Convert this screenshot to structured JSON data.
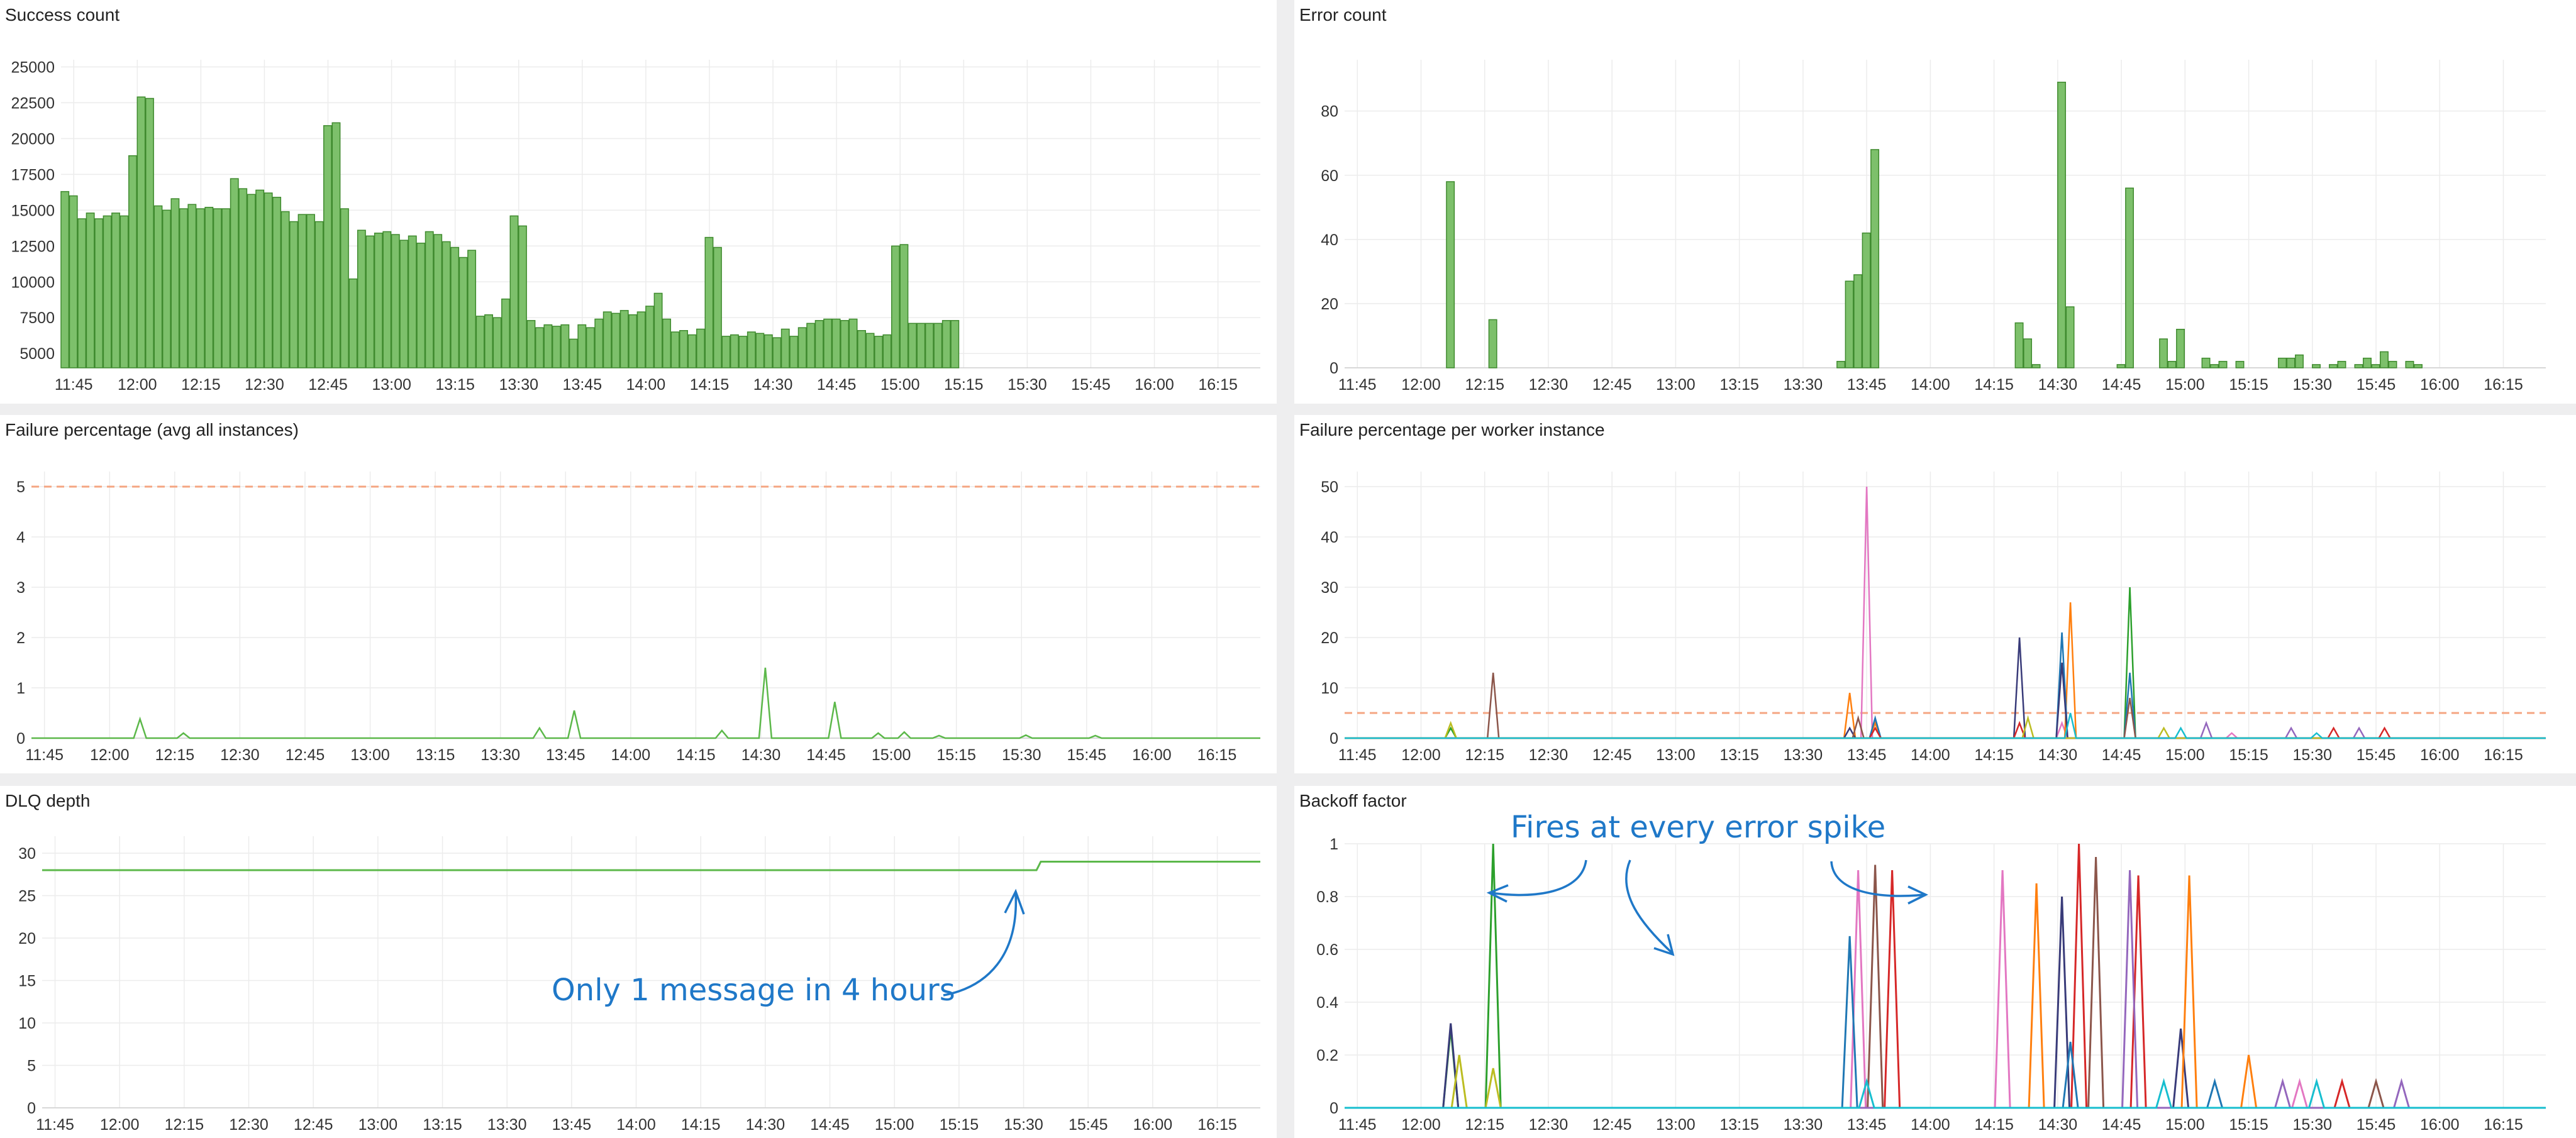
{
  "colors": {
    "bar_fill": "#7dc06b",
    "bar_stroke": "#3f8a2e",
    "line_green": "#5cb84a",
    "threshold": "#f4a582",
    "annotation": "#1f78c8",
    "grid": "#ececec"
  },
  "time_ticks": [
    "11:45",
    "12:00",
    "12:15",
    "12:30",
    "12:45",
    "13:00",
    "13:15",
    "13:30",
    "13:45",
    "14:00",
    "14:15",
    "14:30",
    "14:45",
    "15:00",
    "15:15",
    "15:30",
    "15:45",
    "16:00",
    "16:15"
  ],
  "panels": [
    {
      "id": "success",
      "title": "Success count"
    },
    {
      "id": "error",
      "title": "Error count"
    },
    {
      "id": "failavg",
      "title": "Failure percentage (avg all instances)"
    },
    {
      "id": "failworker",
      "title": "Failure percentage per worker instance"
    },
    {
      "id": "dlq",
      "title": "DLQ depth"
    },
    {
      "id": "backoff",
      "title": "Backoff factor"
    }
  ],
  "annotations": {
    "dlq_note": "Only 1 message in 4 hours",
    "backoff_note": "Fires at every error spike"
  },
  "chart_data": [
    {
      "id": "success",
      "type": "bar",
      "title": "Success count",
      "x_start": "11:42",
      "x_step_minutes": 2,
      "ylim": [
        4000,
        25500
      ],
      "yticks": [
        5000,
        7500,
        10000,
        12500,
        15000,
        17500,
        20000,
        22500,
        25000
      ],
      "values": [
        16300,
        16000,
        14400,
        14800,
        14400,
        14600,
        14800,
        14600,
        18800,
        22900,
        22800,
        15300,
        15000,
        15800,
        15100,
        15400,
        15100,
        15200,
        15100,
        15100,
        17200,
        16500,
        16100,
        16400,
        16200,
        15900,
        14900,
        14200,
        14700,
        14700,
        14200,
        20900,
        21100,
        15100,
        10200,
        13600,
        13200,
        13400,
        13500,
        13300,
        12900,
        13200,
        12700,
        13500,
        13300,
        12800,
        12400,
        11700,
        12200,
        7600,
        7700,
        7500,
        8800,
        14600,
        13900,
        7300,
        6800,
        7000,
        6900,
        7000,
        6000,
        7000,
        6800,
        7400,
        7900,
        7800,
        8000,
        7700,
        7900,
        8300,
        9200,
        7400,
        6500,
        6600,
        6300,
        6700,
        13100,
        12400,
        6200,
        6300,
        6200,
        6500,
        6400,
        6300,
        6100,
        6700,
        6200,
        6800,
        7100,
        7300,
        7400,
        7400,
        7300,
        7400,
        6600,
        6400,
        6200,
        6300,
        12500,
        12600,
        7100,
        7100,
        7100,
        7100,
        7300,
        7300
      ]
    },
    {
      "id": "error",
      "type": "bar",
      "title": "Error count",
      "x_start": "11:42",
      "x_step_minutes": 2,
      "ylim": [
        0,
        96
      ],
      "yticks": [
        0,
        20,
        40,
        60,
        80
      ],
      "spikes": [
        [
          12,
          58
        ],
        [
          17,
          15
        ],
        [
          58,
          2
        ],
        [
          59,
          27
        ],
        [
          60,
          29
        ],
        [
          61,
          42
        ],
        [
          62,
          68
        ],
        [
          79,
          14
        ],
        [
          80,
          9
        ],
        [
          81,
          1
        ],
        [
          84,
          89
        ],
        [
          85,
          19
        ],
        [
          91,
          1
        ],
        [
          92,
          56
        ],
        [
          96,
          9
        ],
        [
          97,
          2
        ],
        [
          98,
          12
        ],
        [
          101,
          3
        ],
        [
          102,
          1
        ],
        [
          103,
          2
        ],
        [
          105,
          2
        ],
        [
          110,
          3
        ],
        [
          111,
          3
        ],
        [
          112,
          4
        ],
        [
          114,
          1
        ],
        [
          116,
          1
        ],
        [
          117,
          2
        ],
        [
          119,
          1
        ],
        [
          120,
          3
        ],
        [
          121,
          1
        ],
        [
          122,
          5
        ],
        [
          123,
          2
        ],
        [
          125,
          2
        ],
        [
          126,
          1
        ]
      ]
    },
    {
      "id": "failavg",
      "type": "line",
      "title": "Failure percentage (avg all instances)",
      "x_start": "11:42",
      "x_step_minutes": 2,
      "ylim": [
        0,
        5.3
      ],
      "yticks": [
        0,
        1,
        2,
        3,
        4,
        5
      ],
      "threshold": 5,
      "peaks": [
        [
          12,
          0.38
        ],
        [
          17,
          0.1
        ],
        [
          58,
          0.2
        ],
        [
          62,
          0.55
        ],
        [
          79,
          0.15
        ],
        [
          84,
          1.4
        ],
        [
          92,
          0.72
        ],
        [
          97,
          0.1
        ],
        [
          100,
          0.12
        ],
        [
          104,
          0.05
        ],
        [
          114,
          0.06
        ],
        [
          122,
          0.05
        ]
      ]
    },
    {
      "id": "failworker",
      "type": "line",
      "title": "Failure percentage per worker instance",
      "x_start": "11:42",
      "x_step_minutes": 2,
      "ylim": [
        0,
        53
      ],
      "yticks": [
        0,
        10,
        20,
        30,
        40,
        50
      ],
      "threshold": 5,
      "series": [
        {
          "color": "#e377c2",
          "peaks": [
            [
              61,
              50
            ],
            [
              84,
              3
            ],
            [
              104,
              1
            ]
          ]
        },
        {
          "color": "#2ca02c",
          "peaks": [
            [
              92,
              30
            ],
            [
              12,
              2
            ]
          ]
        },
        {
          "color": "#ff7f0e",
          "peaks": [
            [
              85,
              27
            ],
            [
              59,
              9
            ],
            [
              62,
              3
            ]
          ]
        },
        {
          "color": "#1f77b4",
          "peaks": [
            [
              84,
              21
            ],
            [
              92,
              13
            ],
            [
              62,
              4
            ]
          ]
        },
        {
          "color": "#393b79",
          "peaks": [
            [
              79,
              20
            ],
            [
              84,
              15
            ],
            [
              59,
              2
            ]
          ]
        },
        {
          "color": "#8c564b",
          "peaks": [
            [
              17,
              13
            ],
            [
              60,
              4
            ],
            [
              92,
              8
            ]
          ]
        },
        {
          "color": "#d62728",
          "peaks": [
            [
              62,
              2
            ],
            [
              79,
              3
            ],
            [
              116,
              2
            ],
            [
              122,
              2
            ]
          ]
        },
        {
          "color": "#9467bd",
          "peaks": [
            [
              101,
              3
            ],
            [
              111,
              2
            ],
            [
              119,
              2
            ]
          ]
        },
        {
          "color": "#bcbd22",
          "peaks": [
            [
              12,
              3
            ],
            [
              80,
              4
            ],
            [
              96,
              2
            ]
          ]
        },
        {
          "color": "#17becf",
          "peaks": [
            [
              85,
              5
            ],
            [
              98,
              2
            ],
            [
              114,
              1
            ]
          ]
        }
      ]
    },
    {
      "id": "dlq",
      "type": "line",
      "title": "DLQ depth",
      "x_start": "11:42",
      "x_step_minutes": 2,
      "ylim": [
        0,
        32
      ],
      "yticks": [
        0,
        5,
        10,
        15,
        20,
        25,
        30
      ],
      "points": [
        [
          "11:42",
          28
        ],
        [
          "15:33",
          28
        ],
        [
          "15:34",
          29
        ],
        [
          "16:25",
          29
        ]
      ]
    },
    {
      "id": "backoff",
      "type": "line",
      "title": "Backoff factor",
      "x_start": "11:42",
      "x_step_minutes": 2,
      "ylim": [
        0,
        1
      ],
      "yticks": [
        0,
        0.2,
        0.4,
        0.6,
        0.8,
        1
      ],
      "series": [
        {
          "color": "#2ca02c",
          "peaks": [
            [
              17,
              1
            ],
            [
              12,
              0.3
            ]
          ]
        },
        {
          "color": "#393b79",
          "peaks": [
            [
              12,
              0.32
            ],
            [
              84,
              0.8
            ],
            [
              98,
              0.3
            ]
          ]
        },
        {
          "color": "#bcbd22",
          "peaks": [
            [
              17,
              0.15
            ],
            [
              13,
              0.2
            ]
          ]
        },
        {
          "color": "#e377c2",
          "peaks": [
            [
              60,
              0.9
            ],
            [
              77,
              0.9
            ],
            [
              112,
              0.1
            ]
          ]
        },
        {
          "color": "#8c564b",
          "peaks": [
            [
              62,
              0.92
            ],
            [
              88,
              0.95
            ],
            [
              121,
              0.1
            ]
          ]
        },
        {
          "color": "#d62728",
          "peaks": [
            [
              64,
              0.9
            ],
            [
              86,
              1
            ],
            [
              93,
              0.88
            ],
            [
              117,
              0.1
            ]
          ]
        },
        {
          "color": "#ff7f0e",
          "peaks": [
            [
              81,
              0.85
            ],
            [
              99,
              0.88
            ],
            [
              106,
              0.2
            ]
          ]
        },
        {
          "color": "#1f77b4",
          "peaks": [
            [
              59,
              0.65
            ],
            [
              85,
              0.25
            ],
            [
              102,
              0.1
            ]
          ]
        },
        {
          "color": "#9467bd",
          "peaks": [
            [
              92,
              0.9
            ],
            [
              110,
              0.1
            ],
            [
              124,
              0.1
            ]
          ]
        },
        {
          "color": "#17becf",
          "peaks": [
            [
              61,
              0.1
            ],
            [
              96,
              0.1
            ],
            [
              114,
              0.1
            ]
          ]
        }
      ]
    }
  ]
}
